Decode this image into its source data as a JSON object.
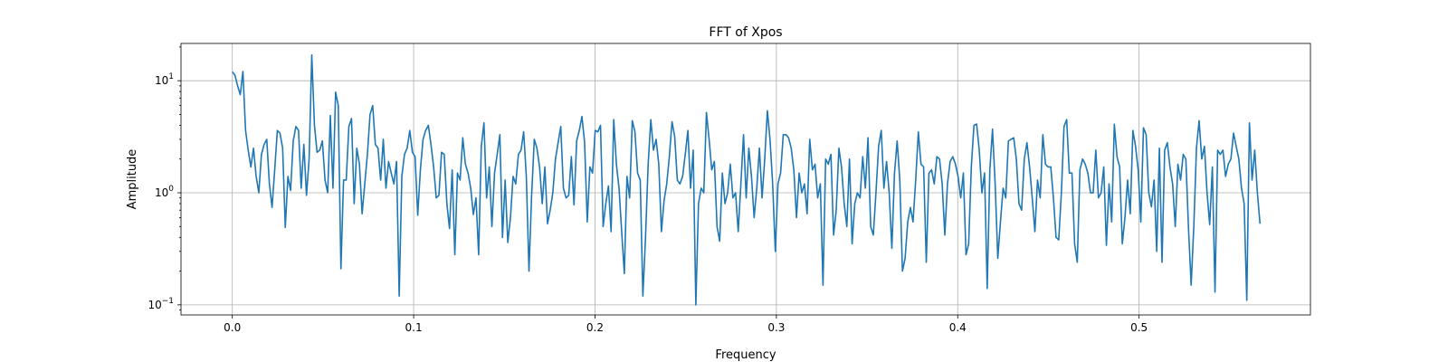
{
  "chart_data": {
    "type": "line",
    "title": "FFT of Xpos",
    "xlabel": "Frequency",
    "ylabel": "Amplitude",
    "xlim": [
      -0.0283,
      0.5945
    ],
    "ylim": [
      0.0813,
      21.5
    ],
    "yscale": "log",
    "grid": true,
    "color": "#1f77b4",
    "x_ticks": [
      {
        "value": 0.0,
        "label": "0.0"
      },
      {
        "value": 0.1,
        "label": "0.1"
      },
      {
        "value": 0.2,
        "label": "0.2"
      },
      {
        "value": 0.3,
        "label": "0.3"
      },
      {
        "value": 0.4,
        "label": "0.4"
      },
      {
        "value": 0.5,
        "label": "0.5"
      }
    ],
    "y_ticks": [
      {
        "value": 0.1,
        "base": "10",
        "exp": "−1"
      },
      {
        "value": 1,
        "base": "10",
        "exp": "0"
      },
      {
        "value": 10,
        "base": "10",
        "exp": "1"
      }
    ],
    "series": [
      {
        "x_start": 0.0,
        "x_end": 0.5667,
        "values": [
          12.0,
          11.2,
          9.0,
          7.5,
          12.1,
          3.6,
          2.4,
          1.7,
          2.5,
          1.4,
          1.0,
          2.2,
          2.7,
          3.0,
          1.2,
          0.74,
          1.6,
          3.6,
          3.4,
          2.5,
          0.49,
          1.4,
          1.05,
          2.9,
          3.9,
          3.6,
          1.1,
          2.7,
          0.95,
          2.0,
          17.0,
          4.0,
          2.3,
          2.4,
          2.9,
          1.3,
          1.0,
          4.9,
          1.1,
          7.9,
          6.0,
          0.21,
          1.3,
          1.3,
          3.9,
          4.6,
          0.8,
          2.5,
          1.8,
          0.65,
          1.2,
          2.2,
          5.0,
          6.0,
          2.7,
          2.5,
          1.3,
          3.0,
          1.1,
          1.9,
          1.5,
          1.2,
          1.9,
          0.12,
          1.4,
          2.2,
          2.5,
          3.6,
          2.3,
          2.1,
          0.63,
          1.6,
          3.0,
          3.6,
          4.0,
          2.7,
          1.7,
          0.9,
          0.95,
          2.3,
          2.2,
          0.8,
          0.48,
          1.6,
          0.28,
          1.5,
          1.3,
          3.1,
          1.8,
          1.5,
          1.1,
          0.64,
          0.9,
          0.28,
          2.6,
          4.2,
          0.9,
          1.7,
          0.5,
          1.5,
          2.2,
          3.3,
          0.4,
          1.3,
          0.36,
          0.6,
          1.4,
          1.2,
          2.2,
          2.4,
          3.5,
          1.4,
          0.2,
          0.95,
          3.0,
          2.5,
          1.7,
          0.8,
          1.7,
          0.53,
          0.7,
          1.0,
          2.0,
          2.8,
          3.9,
          1.1,
          0.9,
          0.95,
          2.1,
          0.78,
          2.9,
          3.6,
          4.8,
          2.8,
          0.55,
          1.7,
          1.5,
          3.6,
          3.5,
          4.0,
          0.5,
          0.8,
          1.15,
          0.45,
          4.5,
          1.8,
          1.1,
          0.45,
          0.19,
          1.4,
          0.9,
          4.4,
          3.5,
          1.5,
          1.3,
          0.12,
          0.4,
          1.8,
          4.5,
          2.4,
          3.0,
          1.8,
          0.45,
          0.85,
          1.2,
          2.1,
          4.3,
          3.2,
          1.3,
          1.2,
          1.4,
          2.2,
          3.6,
          1.1,
          2.4,
          0.1,
          0.8,
          1.1,
          1.0,
          5.2,
          3.0,
          1.6,
          1.9,
          0.5,
          0.37,
          1.5,
          0.8,
          1.0,
          1.8,
          0.9,
          1.0,
          0.45,
          1.2,
          3.3,
          0.9,
          2.5,
          1.4,
          0.6,
          1.1,
          2.5,
          0.9,
          2.0,
          5.4,
          3.0,
          1.2,
          0.3,
          1.2,
          1.5,
          3.3,
          3.3,
          3.1,
          2.5,
          1.6,
          0.6,
          1.5,
          1.0,
          1.2,
          0.65,
          3.0,
          1.6,
          1.8,
          0.9,
          1.2,
          0.15,
          2.0,
          1.8,
          2.2,
          0.42,
          0.7,
          2.5,
          1.7,
          0.8,
          0.5,
          2.0,
          0.35,
          0.8,
          1.0,
          0.9,
          2.1,
          1.1,
          3.1,
          0.5,
          0.42,
          1.0,
          2.6,
          3.6,
          1.1,
          1.9,
          1.0,
          0.32,
          1.5,
          2.9,
          1.3,
          0.2,
          0.26,
          0.55,
          0.74,
          0.55,
          1.3,
          3.5,
          1.8,
          1.7,
          0.24,
          1.5,
          1.6,
          1.2,
          2.1,
          2.0,
          1.2,
          0.42,
          1.2,
          1.9,
          2.1,
          1.8,
          1.4,
          0.9,
          1.5,
          0.28,
          0.35,
          1.7,
          4.0,
          4.1,
          2.4,
          1.0,
          1.5,
          0.14,
          1.6,
          3.7,
          1.2,
          0.26,
          0.55,
          1.1,
          0.9,
          2.9,
          3.0,
          3.1,
          2.0,
          0.8,
          0.7,
          2.0,
          2.8,
          1.7,
          0.9,
          0.45,
          1.3,
          0.9,
          3.3,
          1.8,
          1.7,
          1.7,
          0.9,
          0.4,
          0.38,
          1.0,
          3.9,
          4.5,
          1.5,
          1.5,
          0.35,
          0.24,
          1.6,
          2.0,
          1.8,
          1.5,
          1.0,
          1.0,
          2.4,
          0.9,
          1.0,
          1.7,
          0.34,
          1.2,
          0.55,
          4.1,
          2.1,
          1.7,
          0.35,
          0.6,
          1.3,
          0.65,
          3.6,
          2.6,
          1.6,
          0.55,
          3.8,
          3.3,
          1.0,
          0.75,
          1.3,
          0.3,
          2.5,
          0.24,
          2.4,
          2.8,
          1.7,
          1.2,
          0.5,
          1.8,
          1.3,
          2.2,
          2.0,
          0.48,
          0.15,
          0.5,
          2.5,
          4.4,
          2.0,
          2.6,
          1.0,
          0.52,
          1.7,
          0.13,
          2.4,
          2.2,
          2.4,
          1.4,
          1.8,
          2.0,
          3.4,
          2.6,
          2.0,
          1.1,
          0.8,
          0.11,
          4.2,
          1.3,
          2.4,
          1.0,
          0.53
        ]
      }
    ]
  }
}
